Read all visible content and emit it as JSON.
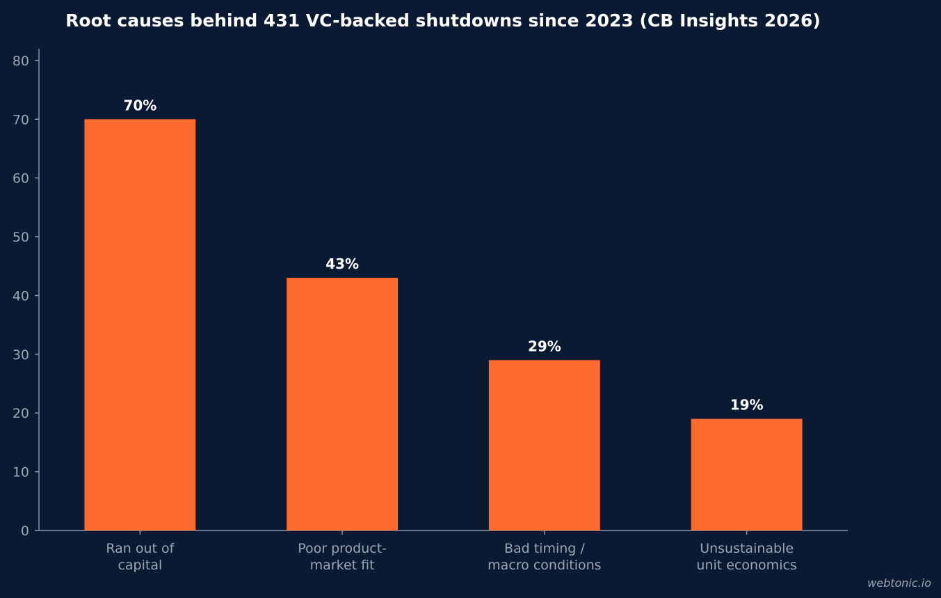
{
  "chart_data": {
    "type": "bar",
    "title": "Root causes behind 431 VC-backed shutdowns since 2023 (CB Insights 2026)",
    "categories": [
      [
        "Ran out of",
        "capital"
      ],
      [
        "Poor product-",
        "market fit"
      ],
      [
        "Bad timing /",
        "macro conditions"
      ],
      [
        "Unsustainable",
        "unit economics"
      ]
    ],
    "values": [
      70,
      43,
      29,
      19
    ],
    "data_labels": [
      "70%",
      "43%",
      "29%",
      "19%"
    ],
    "yticks": [
      0,
      10,
      20,
      30,
      40,
      50,
      60,
      70,
      80
    ],
    "ylim": [
      0,
      82
    ],
    "grid": false,
    "bar_color": "#ff6b2e",
    "axis_color": "#8a97ab",
    "background": "#0b1a33"
  },
  "watermark": "webtonic.io"
}
